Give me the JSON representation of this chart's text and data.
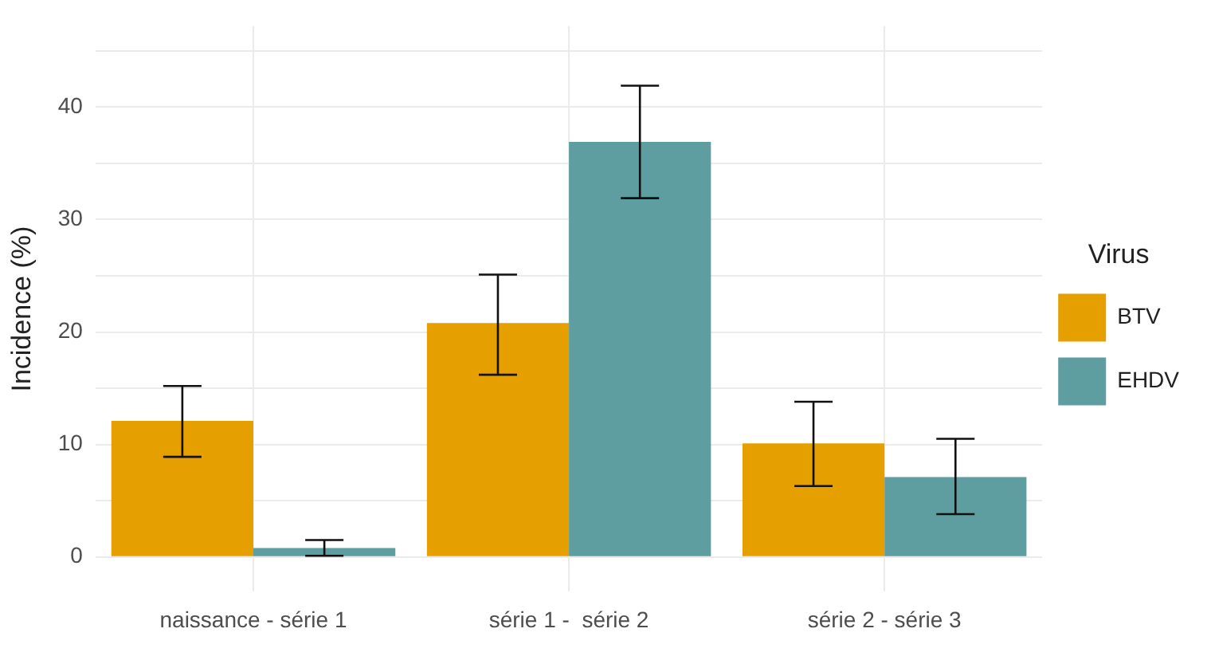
{
  "chart_data": {
    "type": "bar",
    "ylabel": "Incidence (%)",
    "legend_title": "Virus",
    "categories": [
      "naissance - série 1",
      "série 1 -  série 2",
      "série 2 - série 3"
    ],
    "series": [
      {
        "name": "BTV",
        "color": "#e5a000",
        "values": [
          12.1,
          20.8,
          10.1
        ],
        "errors": [
          [
            8.9,
            15.2
          ],
          [
            16.2,
            25.1
          ],
          [
            6.3,
            13.8
          ]
        ]
      },
      {
        "name": "EHDV",
        "color": "#5f9ea0",
        "values": [
          0.8,
          36.9,
          7.1
        ],
        "errors": [
          [
            0.1,
            1.5
          ],
          [
            31.9,
            41.9
          ],
          [
            3.8,
            10.5
          ]
        ]
      }
    ],
    "ylim": [
      -3.1,
      47.2
    ],
    "yticks": [
      0,
      {
        "value": 5,
        "label": null
      },
      10,
      {
        "value": 15,
        "label": null
      },
      20,
      {
        "value": 25,
        "label": null
      },
      30,
      {
        "value": 35,
        "label": null
      },
      40,
      {
        "value": 45,
        "label": null
      }
    ],
    "grid": true,
    "legend": "right"
  }
}
